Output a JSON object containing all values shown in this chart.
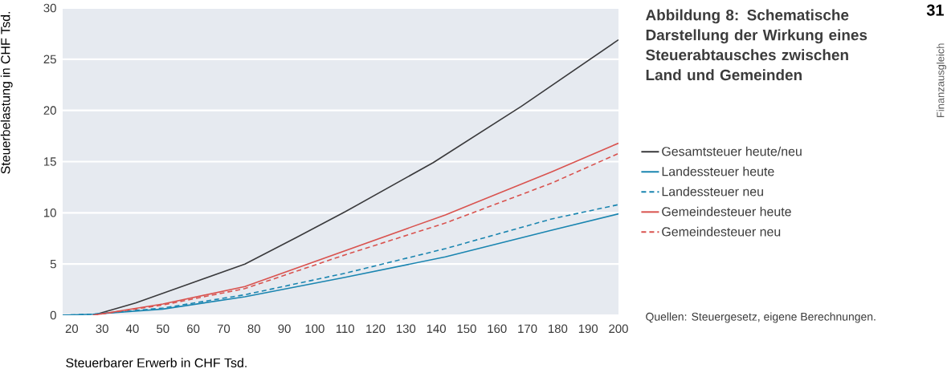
{
  "chart_data": {
    "type": "line",
    "title": "Abbildung 8: Schematische Darstellung der Wirkung eines Steuerabtausches zwischen Land und Gemeinden",
    "xlabel": "Steuerbarer Erwerb in CHF Tsd.",
    "ylabel": "Steuerbelastung in CHF Tsd.",
    "xlim": [
      17,
      200
    ],
    "ylim": [
      0,
      30
    ],
    "xticks": [
      20,
      30,
      40,
      50,
      60,
      70,
      80,
      90,
      100,
      110,
      120,
      130,
      140,
      150,
      160,
      170,
      180,
      190,
      200
    ],
    "yticks": [
      0,
      5,
      10,
      15,
      20,
      25,
      30
    ],
    "grid": "y",
    "legend": "right",
    "marker": "none",
    "series": [
      {
        "name": "Gesamtsteuer heute/neu",
        "color": "#3a3a3c",
        "line_style": "solid",
        "x": [
          27,
          41,
          59,
          77,
          94,
          110,
          139,
          168,
          200
        ],
        "values": [
          0,
          1.2,
          3.1,
          5.0,
          7.6,
          10.1,
          14.9,
          20.4,
          26.9
        ]
      },
      {
        "name": "Landessteuer heute",
        "color": "#1a85b0",
        "line_style": "solid",
        "x": [
          17,
          27,
          50,
          77,
          110,
          143,
          178,
          200
        ],
        "values": [
          0,
          0.1,
          0.6,
          1.8,
          3.7,
          5.7,
          8.3,
          9.9
        ]
      },
      {
        "name": "Landessteuer neu",
        "color": "#1a85b0",
        "line_style": "dashed",
        "x": [
          17,
          27,
          50,
          77,
          110,
          143,
          178,
          200
        ],
        "values": [
          0,
          0.1,
          0.7,
          2.0,
          4.1,
          6.5,
          9.4,
          10.8
        ]
      },
      {
        "name": "Gemeindesteuer heute",
        "color": "#d9534f",
        "line_style": "solid",
        "x": [
          27,
          50,
          77,
          110,
          143,
          178,
          200
        ],
        "values": [
          0,
          1.1,
          2.8,
          6.3,
          9.8,
          14.0,
          16.8
        ]
      },
      {
        "name": "Gemeindesteuer neu",
        "color": "#d9534f",
        "line_style": "dashed",
        "x": [
          27,
          50,
          77,
          110,
          143,
          178,
          200
        ],
        "values": [
          0,
          1.0,
          2.6,
          5.9,
          9.0,
          12.9,
          15.8
        ]
      }
    ],
    "annotations": [
      "Quellen: Steuergesetz, eigene Berechnungen.",
      "Finanzausgleich",
      "31"
    ]
  }
}
